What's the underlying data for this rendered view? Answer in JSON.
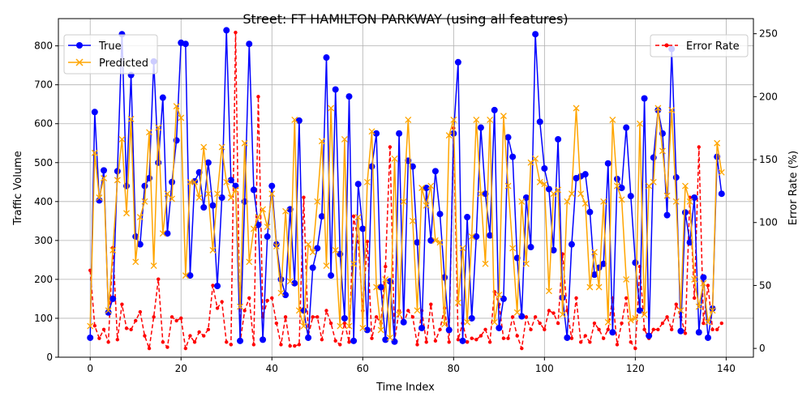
{
  "chart_data": {
    "type": "line",
    "title": "Street: FT HAMILTON PARKWAY (using all features)",
    "xlabel": "Time Index",
    "ylabel": "Traffic Volume",
    "y2label": "Error Rate (%)",
    "xlim": [
      -7,
      146
    ],
    "ylim": [
      0,
      870
    ],
    "y2lim": [
      -7,
      262
    ],
    "xticks": [
      0,
      20,
      40,
      60,
      80,
      100,
      120,
      140
    ],
    "yticks": [
      0,
      100,
      200,
      300,
      400,
      500,
      600,
      700,
      800
    ],
    "y2ticks": [
      0,
      50,
      100,
      150,
      200,
      250
    ],
    "grid": true,
    "legend_left_position": "upper-left",
    "legend_right_position": "upper-right",
    "colors": {
      "true": "#0000ff",
      "predicted": "#ffa500",
      "error": "#ff0000"
    },
    "series": [
      {
        "name": "True",
        "axis": "left",
        "values": [
          50,
          630,
          403,
          480,
          115,
          150,
          478,
          830,
          440,
          725,
          310,
          290,
          440,
          460,
          760,
          500,
          667,
          318,
          450,
          557,
          808,
          805,
          210,
          452,
          475,
          385,
          500,
          390,
          183,
          410,
          840,
          455,
          440,
          42,
          400,
          805,
          430,
          340,
          45,
          310,
          440,
          290,
          200,
          160,
          380,
          190,
          608,
          120,
          50,
          230,
          280,
          362,
          770,
          210,
          688,
          265,
          100,
          670,
          42,
          445,
          330,
          70,
          490,
          575,
          180,
          45,
          195,
          40,
          575,
          90,
          505,
          490,
          295,
          75,
          435,
          300,
          478,
          368,
          205,
          70,
          575,
          758,
          42,
          360,
          100,
          310,
          590,
          420,
          313,
          635,
          75,
          150,
          565,
          515,
          255,
          105,
          410,
          283,
          830,
          605,
          485,
          432,
          275,
          560,
          153,
          50,
          290,
          460,
          465,
          470,
          373,
          212,
          230,
          240,
          498,
          64,
          458,
          435,
          590,
          414,
          243,
          120,
          665,
          55,
          513,
          635,
          575,
          365,
          792,
          462,
          67,
          372,
          295,
          410,
          64,
          205,
          50,
          125,
          515,
          420
        ]
      },
      {
        "name": "Predicted",
        "axis": "left",
        "values": [
          80,
          525,
          410,
          460,
          120,
          275,
          455,
          560,
          370,
          612,
          245,
          360,
          400,
          578,
          235,
          590,
          318,
          420,
          407,
          645,
          615,
          210,
          450,
          450,
          410,
          540,
          420,
          275,
          420,
          540,
          450,
          410,
          430,
          130,
          550,
          245,
          330,
          360,
          380,
          335,
          420,
          285,
          165,
          375,
          195,
          610,
          120,
          80,
          290,
          270,
          400,
          555,
          235,
          640,
          275,
          80,
          560,
          80,
          240,
          360,
          75,
          450,
          580,
          180,
          70,
          200,
          50,
          510,
          110,
          400,
          610,
          350,
          120,
          435,
          390,
          440,
          300,
          295,
          85,
          570,
          610,
          140,
          280,
          90,
          310,
          610,
          420,
          240,
          610,
          90,
          160,
          620,
          440,
          280,
          115,
          400,
          240,
          500,
          510,
          450,
          445,
          170,
          420,
          430,
          110,
          400,
          420,
          640,
          420,
          395,
          180,
          270,
          180,
          400,
          90,
          610,
          440,
          405,
          200,
          95,
          100,
          600,
          110,
          440,
          450,
          640,
          530,
          415,
          635,
          400,
          120,
          440,
          400,
          200,
          130,
          190,
          90,
          120,
          550,
          475
        ]
      },
      {
        "name": "Error Rate",
        "axis": "right",
        "values": [
          62,
          18,
          8,
          15,
          5,
          80,
          7,
          35,
          16,
          15,
          22,
          29,
          10,
          0,
          25,
          55,
          5,
          1,
          25,
          22,
          24,
          0,
          10,
          5,
          13,
          10,
          15,
          50,
          32,
          37,
          5,
          3,
          251,
          5,
          30,
          40,
          3,
          200,
          25,
          38,
          40,
          20,
          3,
          25,
          2,
          2,
          3,
          120,
          10,
          25,
          25,
          7,
          30,
          20,
          6,
          3,
          20,
          5,
          105,
          85,
          30,
          85,
          8,
          25,
          20,
          65,
          160,
          6,
          30,
          20,
          30,
          25,
          3,
          30,
          5,
          35,
          6,
          15,
          32,
          5,
          175,
          7,
          20,
          5,
          8,
          7,
          10,
          15,
          5,
          45,
          35,
          8,
          8,
          25,
          10,
          0,
          25,
          15,
          25,
          20,
          15,
          30,
          28,
          20,
          75,
          30,
          8,
          40,
          5,
          10,
          5,
          20,
          15,
          8,
          15,
          40,
          3,
          20,
          40,
          5,
          0,
          65,
          15,
          8,
          15,
          15,
          20,
          25,
          15,
          35,
          25,
          12,
          120,
          40,
          160,
          20,
          50,
          15,
          15,
          20
        ]
      }
    ]
  }
}
